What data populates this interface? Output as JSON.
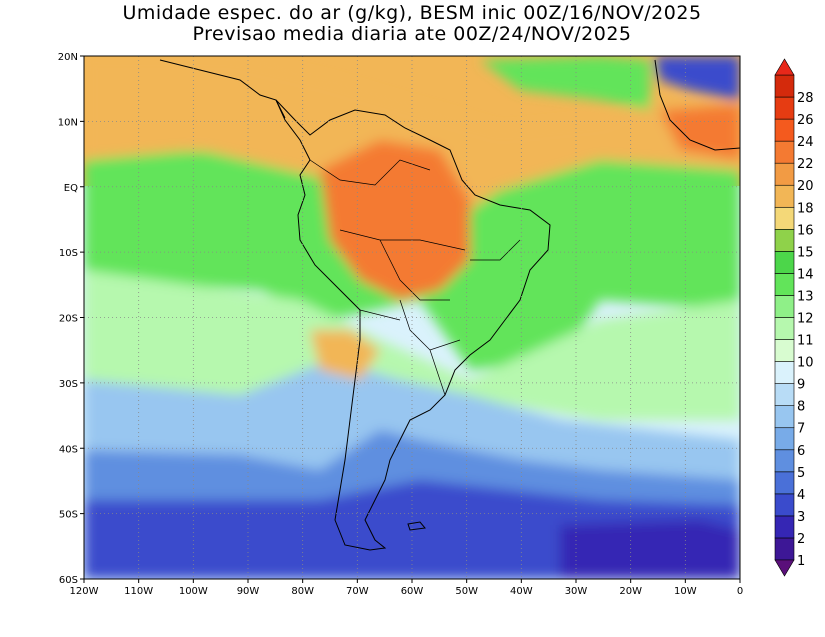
{
  "title_line1": "Umidade espec. do ar (g/kg), BESM inic 00Z/16/NOV/2025",
  "title_line2": "Previsao media diaria ate 00Z/24/NOV/2025",
  "lat_labels": [
    "20N",
    "10N",
    "EQ",
    "10S",
    "20S",
    "30S",
    "40S",
    "50S",
    "60S"
  ],
  "lon_labels": [
    "120W",
    "110W",
    "100W",
    "90W",
    "80W",
    "70W",
    "60W",
    "50W",
    "40W",
    "30W",
    "20W",
    "10W",
    "0"
  ],
  "colorbar": {
    "labels": [
      "1",
      "2",
      "3",
      "4",
      "5",
      "6",
      "7",
      "8",
      "9",
      "10",
      "11",
      "12",
      "13",
      "14",
      "15",
      "16",
      "18",
      "20",
      "22",
      "24",
      "26",
      "28"
    ],
    "colors": [
      "#3d1796",
      "#3526b4",
      "#3a4bcc",
      "#4a70d8",
      "#5f8fe0",
      "#78abe8",
      "#98c6f0",
      "#b8dcf6",
      "#daf2fc",
      "#d8fcd0",
      "#b6f8ae",
      "#8ff088",
      "#62e45a",
      "#4cd64a",
      "#8fd24a",
      "#f4d878",
      "#f2b656",
      "#f29b44",
      "#f47a32",
      "#f45a1e",
      "#e63c12",
      "#d42a0c"
    ],
    "end_arrow_low": "#5a0f7a",
    "end_arrow_high": "#e8281a"
  },
  "map_colors": {
    "humid_core": "#f47a32",
    "warm_band": "#f2b656",
    "tropical_green": "#62e45a",
    "subtropical": "#b6f8ae",
    "pale": "#daf2fc",
    "light_blue": "#98c6f0",
    "blue": "#5f8fe0",
    "deep_blue": "#3a4bcc",
    "southern_violet": "#3526b4",
    "sahara_blue": "#3a4bcc"
  }
}
